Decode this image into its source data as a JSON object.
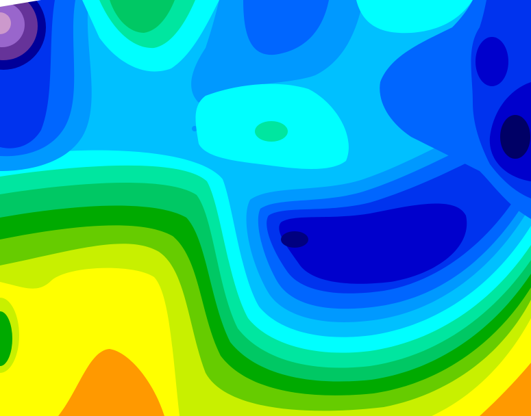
{
  "map": {
    "type": "filled-contour",
    "palette": {
      "orange": "#ff9900",
      "yellow": "#ffff00",
      "yellow_green": "#c8f000",
      "green": "#66cc00",
      "dark_green": "#00aa00",
      "teal_green": "#00c864",
      "aquamarine": "#00e6a0",
      "cyan": "#00ffff",
      "light_blue": "#00c0ff",
      "mid_blue": "#0099ff",
      "blue": "#0066ff",
      "deep_blue": "#0033ee",
      "dark_blue": "#0000cc",
      "navy": "#000080",
      "purple": "#663399",
      "lavender": "#9966cc",
      "pink": "#cc99cc"
    }
  }
}
